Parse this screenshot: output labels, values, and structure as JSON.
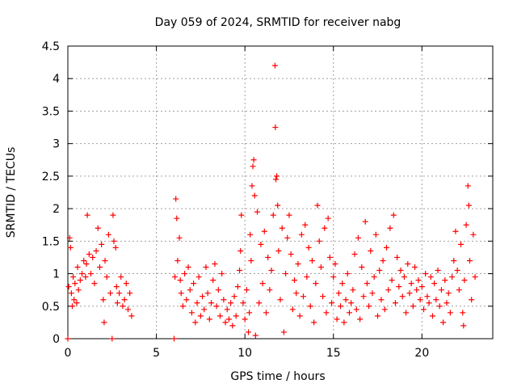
{
  "chart_data": {
    "type": "scatter",
    "title": "Day 059 of 2024, SRMTID for receiver nabg",
    "xlabel": "GPS time / hours",
    "ylabel": "SRMTID / TECUs",
    "xlim": [
      0,
      24
    ],
    "ylim": [
      0,
      4.5
    ],
    "xticks": [
      0,
      5,
      10,
      15,
      20
    ],
    "yticks": [
      0,
      0.5,
      1,
      1.5,
      2,
      2.5,
      3,
      3.5,
      4,
      4.5
    ],
    "xtick_labels": [
      "0",
      "5",
      "10",
      "15",
      "20"
    ],
    "ytick_labels": [
      "0",
      "0.5",
      "1",
      "1.5",
      "2",
      "2.5",
      "3",
      "3.5",
      "4",
      "4.5"
    ],
    "grid": true,
    "marker": "plus",
    "marker_color": "#ff0000",
    "series": [
      {
        "name": "SRMTID",
        "points": [
          [
            0.0,
            0.0
          ],
          [
            0.05,
            0.8
          ],
          [
            0.1,
            1.55
          ],
          [
            0.15,
            1.4
          ],
          [
            0.2,
            0.7
          ],
          [
            0.25,
            0.5
          ],
          [
            0.3,
            0.95
          ],
          [
            0.35,
            0.6
          ],
          [
            0.4,
            0.85
          ],
          [
            0.5,
            0.55
          ],
          [
            0.55,
            1.1
          ],
          [
            0.6,
            0.75
          ],
          [
            0.7,
            0.9
          ],
          [
            0.8,
            1.0
          ],
          [
            0.9,
            1.2
          ],
          [
            1.0,
            0.95
          ],
          [
            1.05,
            1.15
          ],
          [
            1.1,
            1.9
          ],
          [
            1.2,
            1.3
          ],
          [
            1.3,
            1.0
          ],
          [
            1.4,
            1.25
          ],
          [
            1.5,
            0.85
          ],
          [
            1.6,
            1.35
          ],
          [
            1.7,
            1.7
          ],
          [
            1.8,
            1.1
          ],
          [
            1.9,
            1.45
          ],
          [
            2.0,
            0.6
          ],
          [
            2.05,
            0.25
          ],
          [
            2.1,
            1.2
          ],
          [
            2.2,
            0.95
          ],
          [
            2.3,
            1.6
          ],
          [
            2.4,
            0.7
          ],
          [
            2.5,
            0.0
          ],
          [
            2.55,
            1.9
          ],
          [
            2.6,
            1.5
          ],
          [
            2.7,
            1.4
          ],
          [
            2.75,
            0.8
          ],
          [
            2.8,
            0.55
          ],
          [
            2.9,
            0.7
          ],
          [
            3.0,
            0.95
          ],
          [
            3.1,
            0.5
          ],
          [
            3.2,
            0.6
          ],
          [
            3.3,
            0.85
          ],
          [
            3.4,
            0.45
          ],
          [
            3.5,
            0.7
          ],
          [
            3.6,
            0.35
          ],
          [
            6.0,
            0.0
          ],
          [
            6.05,
            0.95
          ],
          [
            6.1,
            2.15
          ],
          [
            6.15,
            1.85
          ],
          [
            6.2,
            1.2
          ],
          [
            6.3,
            1.55
          ],
          [
            6.35,
            0.9
          ],
          [
            6.4,
            0.7
          ],
          [
            6.5,
            0.5
          ],
          [
            6.6,
            1.0
          ],
          [
            6.7,
            0.6
          ],
          [
            6.8,
            1.1
          ],
          [
            6.9,
            0.75
          ],
          [
            7.0,
            0.4
          ],
          [
            7.1,
            0.85
          ],
          [
            7.2,
            0.25
          ],
          [
            7.3,
            0.55
          ],
          [
            7.4,
            0.95
          ],
          [
            7.5,
            0.35
          ],
          [
            7.6,
            0.65
          ],
          [
            7.7,
            0.45
          ],
          [
            7.8,
            1.1
          ],
          [
            7.9,
            0.7
          ],
          [
            8.0,
            0.3
          ],
          [
            8.1,
            0.55
          ],
          [
            8.2,
            0.9
          ],
          [
            8.3,
            1.15
          ],
          [
            8.4,
            0.5
          ],
          [
            8.5,
            0.75
          ],
          [
            8.6,
            0.35
          ],
          [
            8.7,
            1.0
          ],
          [
            8.8,
            0.6
          ],
          [
            8.9,
            0.25
          ],
          [
            9.0,
            0.45
          ],
          [
            9.1,
            0.3
          ],
          [
            9.2,
            0.55
          ],
          [
            9.3,
            0.2
          ],
          [
            9.4,
            0.65
          ],
          [
            9.5,
            0.35
          ],
          [
            9.6,
            0.8
          ],
          [
            9.7,
            1.05
          ],
          [
            9.75,
            1.35
          ],
          [
            9.8,
            1.9
          ],
          [
            9.9,
            0.55
          ],
          [
            10.0,
            0.3
          ],
          [
            10.1,
            0.75
          ],
          [
            10.2,
            0.1
          ],
          [
            10.25,
            0.4
          ],
          [
            10.3,
            1.6
          ],
          [
            10.35,
            1.2
          ],
          [
            10.4,
            2.35
          ],
          [
            10.45,
            2.65
          ],
          [
            10.5,
            2.75
          ],
          [
            10.55,
            2.2
          ],
          [
            10.6,
            0.05
          ],
          [
            10.7,
            1.95
          ],
          [
            10.8,
            0.55
          ],
          [
            10.9,
            1.45
          ],
          [
            11.0,
            0.85
          ],
          [
            11.1,
            1.65
          ],
          [
            11.2,
            0.4
          ],
          [
            11.3,
            1.25
          ],
          [
            11.4,
            0.75
          ],
          [
            11.5,
            1.05
          ],
          [
            11.6,
            1.9
          ],
          [
            11.7,
            4.2
          ],
          [
            11.72,
            3.25
          ],
          [
            11.75,
            2.45
          ],
          [
            11.8,
            2.5
          ],
          [
            11.85,
            2.05
          ],
          [
            11.9,
            1.35
          ],
          [
            12.0,
            0.6
          ],
          [
            12.1,
            1.7
          ],
          [
            12.2,
            0.1
          ],
          [
            12.3,
            1.0
          ],
          [
            12.4,
            1.55
          ],
          [
            12.5,
            1.9
          ],
          [
            12.6,
            1.3
          ],
          [
            12.7,
            0.45
          ],
          [
            12.8,
            0.9
          ],
          [
            12.9,
            0.7
          ],
          [
            13.0,
            1.15
          ],
          [
            13.1,
            0.35
          ],
          [
            13.2,
            1.6
          ],
          [
            13.3,
            0.65
          ],
          [
            13.4,
            1.75
          ],
          [
            13.5,
            0.95
          ],
          [
            13.6,
            1.4
          ],
          [
            13.7,
            0.5
          ],
          [
            13.8,
            1.2
          ],
          [
            13.9,
            0.25
          ],
          [
            14.0,
            0.85
          ],
          [
            14.1,
            2.05
          ],
          [
            14.2,
            1.5
          ],
          [
            14.3,
            1.1
          ],
          [
            14.4,
            0.65
          ],
          [
            14.5,
            1.7
          ],
          [
            14.6,
            0.4
          ],
          [
            14.7,
            1.85
          ],
          [
            14.8,
            1.25
          ],
          [
            14.9,
            0.55
          ],
          [
            15.0,
            0.95
          ],
          [
            15.1,
            1.15
          ],
          [
            15.2,
            0.3
          ],
          [
            15.3,
            0.7
          ],
          [
            15.4,
            0.5
          ],
          [
            15.5,
            0.85
          ],
          [
            15.6,
            0.25
          ],
          [
            15.7,
            0.6
          ],
          [
            15.8,
            1.0
          ],
          [
            15.9,
            0.4
          ],
          [
            16.0,
            0.55
          ],
          [
            16.1,
            0.75
          ],
          [
            16.2,
            1.3
          ],
          [
            16.3,
            0.45
          ],
          [
            16.4,
            1.55
          ],
          [
            16.5,
            0.3
          ],
          [
            16.6,
            1.1
          ],
          [
            16.7,
            0.65
          ],
          [
            16.8,
            1.8
          ],
          [
            16.9,
            0.85
          ],
          [
            17.0,
            0.5
          ],
          [
            17.1,
            1.35
          ],
          [
            17.2,
            0.7
          ],
          [
            17.3,
            0.95
          ],
          [
            17.4,
            1.6
          ],
          [
            17.5,
            0.35
          ],
          [
            17.6,
            1.05
          ],
          [
            17.7,
            0.6
          ],
          [
            17.8,
            1.2
          ],
          [
            17.9,
            0.45
          ],
          [
            18.0,
            1.4
          ],
          [
            18.1,
            0.75
          ],
          [
            18.2,
            1.7
          ],
          [
            18.3,
            0.9
          ],
          [
            18.4,
            1.9
          ],
          [
            18.5,
            0.55
          ],
          [
            18.6,
            1.25
          ],
          [
            18.7,
            0.8
          ],
          [
            18.8,
            1.05
          ],
          [
            18.9,
            0.65
          ],
          [
            19.0,
            0.95
          ],
          [
            19.1,
            0.4
          ],
          [
            19.2,
            1.15
          ],
          [
            19.3,
            0.7
          ],
          [
            19.4,
            0.85
          ],
          [
            19.5,
            0.5
          ],
          [
            19.6,
            1.1
          ],
          [
            19.7,
            0.75
          ],
          [
            19.8,
            0.9
          ],
          [
            19.9,
            0.6
          ],
          [
            20.0,
            0.8
          ],
          [
            20.1,
            0.45
          ],
          [
            20.2,
            1.0
          ],
          [
            20.3,
            0.65
          ],
          [
            20.4,
            0.55
          ],
          [
            20.5,
            0.95
          ],
          [
            20.6,
            0.35
          ],
          [
            20.7,
            0.85
          ],
          [
            20.8,
            0.6
          ],
          [
            20.9,
            1.05
          ],
          [
            21.0,
            0.5
          ],
          [
            21.1,
            0.75
          ],
          [
            21.2,
            0.25
          ],
          [
            21.3,
            0.9
          ],
          [
            21.4,
            0.55
          ],
          [
            21.5,
            0.7
          ],
          [
            21.6,
            0.4
          ],
          [
            21.7,
            0.95
          ],
          [
            21.8,
            1.2
          ],
          [
            21.9,
            1.65
          ],
          [
            22.0,
            1.05
          ],
          [
            22.1,
            0.75
          ],
          [
            22.2,
            1.45
          ],
          [
            22.3,
            0.4
          ],
          [
            22.35,
            0.2
          ],
          [
            22.4,
            0.9
          ],
          [
            22.5,
            1.75
          ],
          [
            22.6,
            2.35
          ],
          [
            22.65,
            2.05
          ],
          [
            22.7,
            1.2
          ],
          [
            22.8,
            0.6
          ],
          [
            22.9,
            1.6
          ],
          [
            23.0,
            0.95
          ]
        ]
      }
    ]
  }
}
